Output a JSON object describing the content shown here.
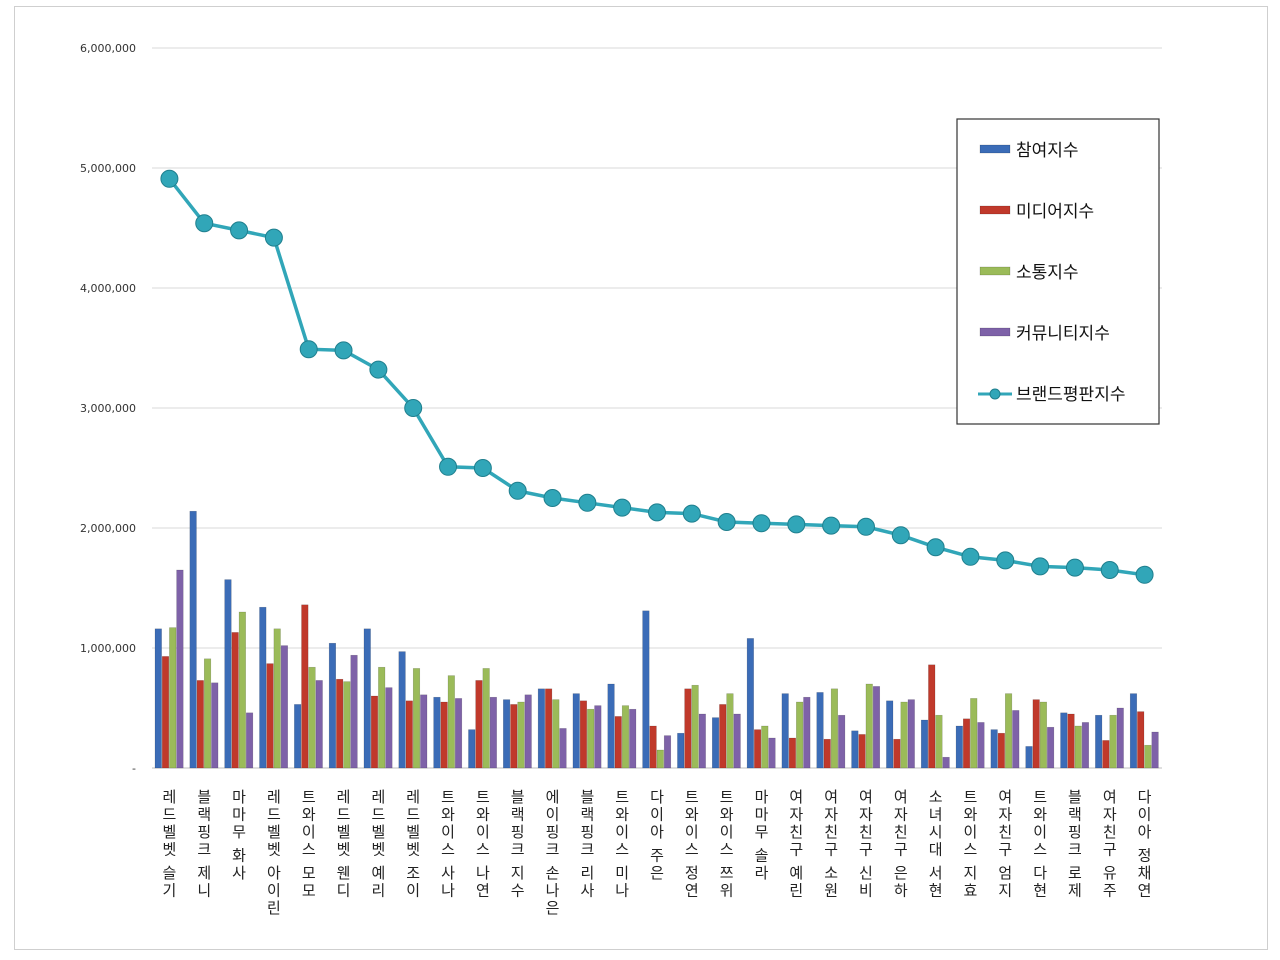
{
  "chart_data": {
    "type": "bar",
    "title": "",
    "xlabel": "",
    "ylabel": "",
    "ylim": [
      0,
      6000000
    ],
    "yticks": [
      0,
      1000000,
      2000000,
      3000000,
      4000000,
      5000000,
      6000000
    ],
    "ytick_labels": [
      "-",
      "1,000,000",
      "2,000,000",
      "3,000,000",
      "4,000,000",
      "5,000,000",
      "6,000,000"
    ],
    "grid": true,
    "legend_position": "top-right",
    "categories": [
      "레드벨벳 슬기",
      "블랙핑크 제니",
      "마마무 화사",
      "레드벨벳 아이린",
      "트와이스 모모",
      "레드벨벳 웬디",
      "레드벨벳 예리",
      "레드벨벳 조이",
      "트와이스 사나",
      "트와이스 나연",
      "블랙핑크 지수",
      "에이핑크 손나은",
      "블랙핑크 리사",
      "트와이스 미나",
      "다이아 주은",
      "트와이스 정연",
      "트와이스 쯔위",
      "마마무 솔라",
      "여자친구 예린",
      "여자친구 소원",
      "여자친구 신비",
      "여자친구 은하",
      "소녀시대 서현",
      "트와이스 지효",
      "여자친구 엄지",
      "트와이스 다현",
      "블랙핑크 로제",
      "여자친구 유주",
      "다이아 정채연"
    ],
    "series": [
      {
        "name": "참여지수",
        "type": "bar",
        "color": "#3b6cb7",
        "values": [
          1160000,
          2140000,
          1570000,
          1340000,
          530000,
          1040000,
          1160000,
          970000,
          590000,
          320000,
          570000,
          660000,
          620000,
          700000,
          1310000,
          290000,
          420000,
          1080000,
          620000,
          630000,
          310000,
          560000,
          400000,
          350000,
          320000,
          180000,
          460000,
          440000,
          620000
        ]
      },
      {
        "name": "미디어지수",
        "type": "bar",
        "color": "#c0392b",
        "values": [
          930000,
          730000,
          1130000,
          870000,
          1360000,
          740000,
          600000,
          560000,
          550000,
          730000,
          530000,
          660000,
          560000,
          430000,
          350000,
          660000,
          530000,
          320000,
          250000,
          240000,
          280000,
          240000,
          860000,
          410000,
          290000,
          570000,
          450000,
          230000,
          470000
        ]
      },
      {
        "name": "소통지수",
        "type": "bar",
        "color": "#9bbb59",
        "values": [
          1170000,
          910000,
          1300000,
          1160000,
          840000,
          720000,
          840000,
          830000,
          770000,
          830000,
          550000,
          570000,
          490000,
          520000,
          150000,
          690000,
          620000,
          350000,
          550000,
          660000,
          700000,
          550000,
          440000,
          580000,
          620000,
          550000,
          350000,
          440000,
          190000
        ]
      },
      {
        "name": "커뮤니티지수",
        "type": "bar",
        "color": "#7e62a8",
        "values": [
          1650000,
          710000,
          460000,
          1020000,
          730000,
          940000,
          670000,
          610000,
          580000,
          590000,
          610000,
          330000,
          520000,
          490000,
          270000,
          450000,
          450000,
          250000,
          590000,
          440000,
          680000,
          570000,
          90000,
          380000,
          480000,
          340000,
          380000,
          500000,
          300000
        ]
      },
      {
        "name": "브랜드평판지수",
        "type": "line",
        "color": "#31a6b8",
        "values": [
          4910000,
          4540000,
          4480000,
          4420000,
          3490000,
          3480000,
          3320000,
          3000000,
          2510000,
          2500000,
          2310000,
          2250000,
          2210000,
          2170000,
          2130000,
          2120000,
          2050000,
          2040000,
          2030000,
          2020000,
          2010000,
          1940000,
          1840000,
          1760000,
          1730000,
          1680000,
          1670000,
          1650000,
          1610000
        ]
      }
    ]
  }
}
